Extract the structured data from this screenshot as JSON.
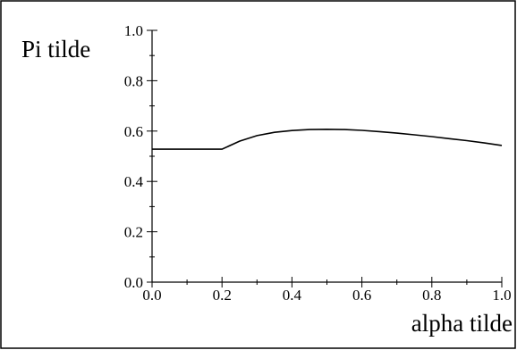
{
  "chart_data": {
    "type": "line",
    "title": "",
    "xlabel": "alpha tilde",
    "ylabel": "Pi tilde",
    "xlim": [
      0.0,
      1.0
    ],
    "ylim": [
      0.0,
      1.0
    ],
    "x_ticks": [
      0.0,
      0.2,
      0.4,
      0.6,
      0.8,
      1.0
    ],
    "x_tick_labels": [
      "0.0",
      "0.2",
      "0.4",
      "0.6",
      "0.8",
      "1.0"
    ],
    "y_ticks": [
      0.0,
      0.2,
      0.4,
      0.6,
      0.8,
      1.0
    ],
    "y_tick_labels": [
      "0.0",
      "0.2",
      "0.4",
      "0.6",
      "0.8",
      "1.0"
    ],
    "grid": false,
    "series": [
      {
        "x": [
          0.0,
          0.05,
          0.1,
          0.15,
          0.2,
          0.25,
          0.3,
          0.35,
          0.4,
          0.45,
          0.5,
          0.55,
          0.6,
          0.65,
          0.7,
          0.75,
          0.8,
          0.85,
          0.9,
          0.95,
          1.0
        ],
        "y": [
          0.528,
          0.528,
          0.528,
          0.528,
          0.528,
          0.56,
          0.582,
          0.595,
          0.602,
          0.606,
          0.607,
          0.606,
          0.603,
          0.598,
          0.592,
          0.585,
          0.578,
          0.57,
          0.562,
          0.553,
          0.543
        ]
      }
    ]
  }
}
